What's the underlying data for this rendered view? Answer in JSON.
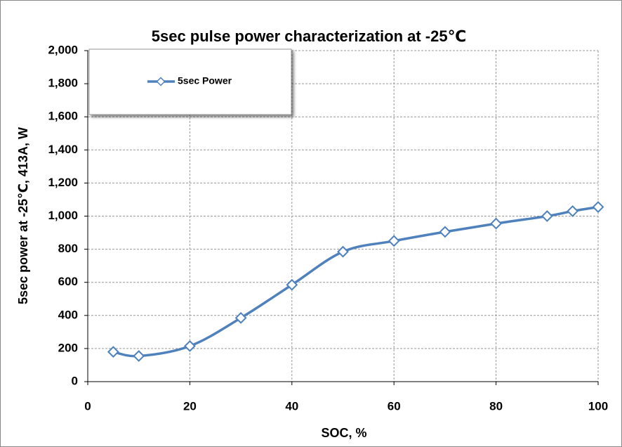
{
  "chart_data": {
    "type": "line",
    "title": "5sec pulse power characterization at -25℃",
    "x_label": "SOC, %",
    "y_label": "5sec power at -25℃, 413A, W",
    "x": [
      5,
      10,
      20,
      30,
      40,
      50,
      60,
      70,
      80,
      90,
      95,
      100
    ],
    "series": [
      {
        "name": "5sec Power",
        "color": "#4f81bd",
        "values": [
          180,
          155,
          215,
          385,
          585,
          785,
          850,
          905,
          955,
          1000,
          1030,
          1055
        ]
      }
    ],
    "xlim": [
      0,
      100
    ],
    "xticks": [
      0,
      20,
      40,
      60,
      80,
      100
    ],
    "ylim": [
      0,
      2000
    ],
    "yticks": [
      0,
      200,
      400,
      600,
      800,
      {
        "value": 1000,
        "label": "1,000"
      },
      {
        "value": 1200,
        "label": "1,200"
      },
      {
        "value": 1400,
        "label": "1,400"
      },
      {
        "value": 1600,
        "label": "1,600"
      },
      {
        "value": 1800,
        "label": "1,800"
      },
      {
        "value": 2000,
        "label": "2,000"
      }
    ],
    "grid": true,
    "legend": "upper left"
  }
}
